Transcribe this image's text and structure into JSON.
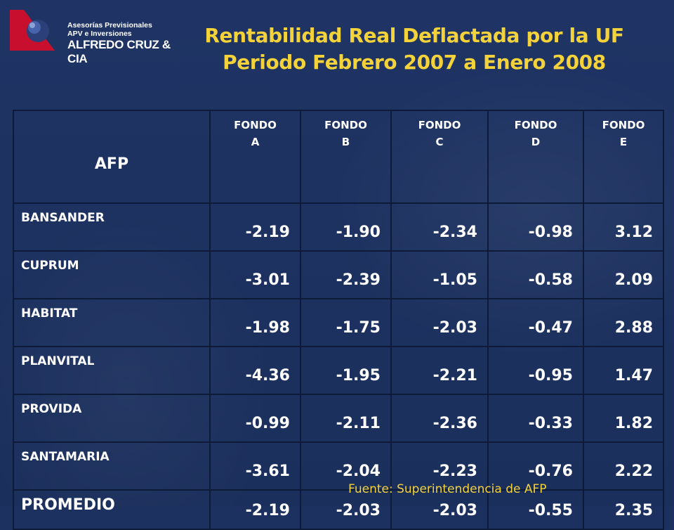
{
  "logo": {
    "line1": "Asesorías Previsionales",
    "line2": "APV e Inversiones",
    "line3": "ALFREDO CRUZ & CIA"
  },
  "title": {
    "line1": "Rentabilidad Real Deflactada por la UF",
    "line2": "Periodo Febrero 2007 a Enero 2008"
  },
  "table": {
    "header_afp": "AFP",
    "funds": [
      {
        "l1": "FONDO",
        "l2": "A"
      },
      {
        "l1": "FONDO",
        "l2": "B"
      },
      {
        "l1": "FONDO",
        "l2": "C"
      },
      {
        "l1": "FONDO",
        "l2": "D"
      },
      {
        "l1": "FONDO",
        "l2": "E"
      }
    ],
    "rows": [
      {
        "name": "BANSANDER",
        "values": [
          "-2.19",
          "-1.90",
          "-2.34",
          "-0.98",
          "3.12"
        ]
      },
      {
        "name": "CUPRUM",
        "values": [
          "-3.01",
          "-2.39",
          "-1.05",
          "-0.58",
          "2.09"
        ]
      },
      {
        "name": "HABITAT",
        "values": [
          "-1.98",
          "-1.75",
          "-2.03",
          "-0.47",
          "2.88"
        ]
      },
      {
        "name": "PLANVITAL",
        "values": [
          "-4.36",
          "-1.95",
          "-2.21",
          "-0.95",
          "1.47"
        ]
      },
      {
        "name": "PROVIDA",
        "values": [
          "-0.99",
          "-2.11",
          "-2.36",
          "-0.33",
          "1.82"
        ]
      },
      {
        "name": "SANTAMARIA",
        "values": [
          "-3.61",
          "-2.04",
          "-2.23",
          "-0.76",
          "2.22"
        ]
      }
    ],
    "average": {
      "name": "PROMEDIO",
      "values": [
        "-2.19",
        "-2.03",
        "-2.03",
        "-0.55",
        "2.35"
      ]
    }
  },
  "source": "Fuente: Superintendencia de AFP",
  "colors": {
    "background": "#1d3160",
    "title": "#f3d23a",
    "text": "#ffffff",
    "grid": "#0d1a38",
    "logo_red": "#c8102e"
  }
}
